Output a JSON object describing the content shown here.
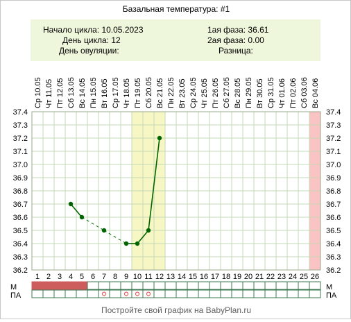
{
  "title": "Базальная температура: #1",
  "info": {
    "cycle_start": "Начало цикла: 10.05.2023",
    "cycle_day": "День цикла: 12",
    "ovulation_day": "День овуляции:",
    "phase1": "1ая фаза: 36.61",
    "phase2": "2ая фаза: 0.00",
    "difference": "Разница:"
  },
  "footer": "Постройте свой график на BabyPlan.ru",
  "row_labels": {
    "m": "М",
    "pa": "ПА"
  },
  "colors": {
    "info_bg": "#eef7dc",
    "highlight": "#f6f7c4",
    "last_day": "#fbc4c4",
    "line": "#006400",
    "menses": "#cd5c5c",
    "pa_marker": "#e06060",
    "grid": "#c6d9b4"
  },
  "chart_data": {
    "type": "line",
    "title": "Базальная температура: #1",
    "days": [
      1,
      2,
      3,
      4,
      5,
      6,
      7,
      8,
      9,
      10,
      11,
      12,
      13,
      14,
      15,
      16,
      17,
      18,
      19,
      20,
      21,
      22,
      23,
      24,
      25,
      26
    ],
    "dates": [
      "Ср 10.05",
      "Чт 11.05",
      "Пт 12.05",
      "Сб 13.05",
      "Вс 14.05",
      "Пн 15.05",
      "Вт 16.05",
      "Ср 17.05",
      "Чт 18.05",
      "Пт 19.05",
      "Сб 20.05",
      "Вс 21.05",
      "Пн 22.05",
      "Вт 23.05",
      "Ср 24.05",
      "Чт 25.05",
      "Пт 26.05",
      "Сб 27.05",
      "Вс 28.05",
      "Пн 29.05",
      "Вт 30.05",
      "Ср 31.05",
      "Чт 01.06",
      "Пт 02.06",
      "Сб 03.06",
      "Вс 04.06"
    ],
    "yticks": [
      "37.4",
      "37.3",
      "37.2",
      "37.1",
      "37.0",
      "36.9",
      "36.8",
      "36.7",
      "36.6",
      "36.5",
      "36.4",
      "36.3",
      "36.2"
    ],
    "ylim": [
      36.2,
      37.4
    ],
    "points": [
      {
        "day": 4,
        "temp": 36.7
      },
      {
        "day": 5,
        "temp": 36.6
      },
      {
        "day": 7,
        "temp": 36.5
      },
      {
        "day": 9,
        "temp": 36.4
      },
      {
        "day": 10,
        "temp": 36.4
      },
      {
        "day": 11,
        "temp": 36.5
      },
      {
        "day": 12,
        "temp": 37.2
      }
    ],
    "dashed_segments": [
      [
        5,
        7
      ],
      [
        7,
        9
      ]
    ],
    "highlight_days": [
      10,
      11,
      12
    ],
    "last_day_highlight": 26,
    "menses_days": [
      1,
      2,
      3,
      4,
      5
    ],
    "pa_days": [
      7,
      9,
      10,
      11
    ]
  }
}
